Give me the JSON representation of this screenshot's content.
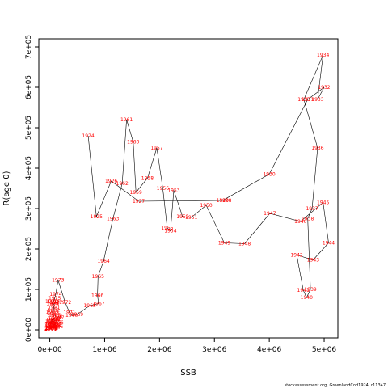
{
  "chart_data": {
    "type": "line",
    "xlabel": "SSB",
    "ylabel": "R(age 0)",
    "xlim": [
      -200000,
      5250000
    ],
    "ylim": [
      -20000,
      720000
    ],
    "x_ticks": [
      0,
      1000000,
      2000000,
      3000000,
      4000000,
      5000000
    ],
    "x_tick_labels": [
      "0e+00",
      "1e+06",
      "2e+06",
      "3e+06",
      "4e+06",
      "5e+06"
    ],
    "y_ticks": [
      0,
      100000,
      200000,
      300000,
      400000,
      500000,
      600000,
      700000
    ],
    "y_tick_labels": [
      "0e+00",
      "1e+05",
      "2e+05",
      "3e+05",
      "4e+05",
      "5e+05",
      "6e+05",
      "7e+05"
    ],
    "grid": false,
    "legend": "none",
    "label_color": "#ff0000",
    "line_color": "#000000",
    "credit": "stockassessment.org, GreenlandCod1924, r11347",
    "points": [
      {
        "year": "1924",
        "x": 700000,
        "y": 480000
      },
      {
        "year": "1925",
        "x": 850000,
        "y": 280000
      },
      {
        "year": "1926",
        "x": 1120000,
        "y": 368000
      },
      {
        "year": "1927",
        "x": 1620000,
        "y": 318000
      },
      {
        "year": "1928",
        "x": 3200000,
        "y": 320000
      },
      {
        "year": "1929",
        "x": 3150000,
        "y": 320000
      },
      {
        "year": "1930",
        "x": 4000000,
        "y": 385000
      },
      {
        "year": "1931",
        "x": 4700000,
        "y": 570000
      },
      {
        "year": "1932",
        "x": 5000000,
        "y": 600000
      },
      {
        "year": "1933",
        "x": 4880000,
        "y": 570000
      },
      {
        "year": "1934",
        "x": 4980000,
        "y": 680000
      },
      {
        "year": "1935",
        "x": 4630000,
        "y": 570000
      },
      {
        "year": "1936",
        "x": 4880000,
        "y": 450000
      },
      {
        "year": "1937",
        "x": 4780000,
        "y": 300000
      },
      {
        "year": "1938",
        "x": 4700000,
        "y": 275000
      },
      {
        "year": "1939",
        "x": 4750000,
        "y": 100000
      },
      {
        "year": "1940",
        "x": 4680000,
        "y": 80000
      },
      {
        "year": "1941",
        "x": 4620000,
        "y": 98000
      },
      {
        "year": "1942",
        "x": 4500000,
        "y": 185000
      },
      {
        "year": "1943",
        "x": 4800000,
        "y": 173000
      },
      {
        "year": "1944",
        "x": 5080000,
        "y": 215000
      },
      {
        "year": "1945",
        "x": 4980000,
        "y": 315000
      },
      {
        "year": "1946",
        "x": 4570000,
        "y": 268000
      },
      {
        "year": "1947",
        "x": 4010000,
        "y": 288000
      },
      {
        "year": "1948",
        "x": 3550000,
        "y": 213000
      },
      {
        "year": "1949",
        "x": 3180000,
        "y": 215000
      },
      {
        "year": "1950",
        "x": 2850000,
        "y": 308000
      },
      {
        "year": "1951",
        "x": 2580000,
        "y": 278000
      },
      {
        "year": "1952",
        "x": 2420000,
        "y": 280000
      },
      {
        "year": "1953",
        "x": 2260000,
        "y": 345000
      },
      {
        "year": "1954",
        "x": 2200000,
        "y": 245000
      },
      {
        "year": "1955",
        "x": 2140000,
        "y": 252000
      },
      {
        "year": "1956",
        "x": 2060000,
        "y": 350000
      },
      {
        "year": "1957",
        "x": 1950000,
        "y": 450000
      },
      {
        "year": "1958",
        "x": 1780000,
        "y": 375000
      },
      {
        "year": "1959",
        "x": 1570000,
        "y": 340000
      },
      {
        "year": "1960",
        "x": 1520000,
        "y": 465000
      },
      {
        "year": "1961",
        "x": 1400000,
        "y": 520000
      },
      {
        "year": "1962",
        "x": 1320000,
        "y": 362000
      },
      {
        "year": "1963",
        "x": 1150000,
        "y": 275000
      },
      {
        "year": "1964",
        "x": 980000,
        "y": 170000
      },
      {
        "year": "1965",
        "x": 880000,
        "y": 132000
      },
      {
        "year": "1966",
        "x": 870000,
        "y": 85000
      },
      {
        "year": "1967",
        "x": 890000,
        "y": 65000
      },
      {
        "year": "1968",
        "x": 730000,
        "y": 60000
      },
      {
        "year": "1969",
        "x": 500000,
        "y": 38000
      },
      {
        "year": "1970",
        "x": 400000,
        "y": 36000
      },
      {
        "year": "1971",
        "x": 360000,
        "y": 43000
      },
      {
        "year": "1972",
        "x": 280000,
        "y": 68000
      },
      {
        "year": "1973",
        "x": 150000,
        "y": 123000
      },
      {
        "year": "1974",
        "x": 110000,
        "y": 88000
      },
      {
        "year": "1975",
        "x": 90000,
        "y": 78000
      },
      {
        "year": "1976",
        "x": 70000,
        "y": 70000
      },
      {
        "year": "1977",
        "x": 120000,
        "y": 68000
      },
      {
        "year": "1978",
        "x": 60000,
        "y": 62000
      },
      {
        "year": "1979",
        "x": 30000,
        "y": 70000
      },
      {
        "year": "1980",
        "x": 50000,
        "y": 65000
      },
      {
        "year": "1981",
        "x": 80000,
        "y": 55000
      },
      {
        "year": "1982",
        "x": 70000,
        "y": 48000
      },
      {
        "year": "1983",
        "x": 40000,
        "y": 44000
      },
      {
        "year": "1984",
        "x": 60000,
        "y": 40000
      },
      {
        "year": "1985",
        "x": 90000,
        "y": 36000
      },
      {
        "year": "1986",
        "x": 120000,
        "y": 32000
      },
      {
        "year": "1987",
        "x": 150000,
        "y": 30000
      },
      {
        "year": "1988",
        "x": 80000,
        "y": 28000
      },
      {
        "year": "1989",
        "x": 40000,
        "y": 25000
      },
      {
        "year": "1990",
        "x": 30000,
        "y": 20000
      },
      {
        "year": "1991",
        "x": 20000,
        "y": 15000
      },
      {
        "year": "1992",
        "x": 15000,
        "y": 12000
      },
      {
        "year": "1993",
        "x": 25000,
        "y": 8000
      },
      {
        "year": "1994",
        "x": 60000,
        "y": 10000
      },
      {
        "year": "1995",
        "x": 100000,
        "y": 12000
      },
      {
        "year": "1996",
        "x": 130000,
        "y": 8000
      },
      {
        "year": "1997",
        "x": 90000,
        "y": 6000
      },
      {
        "year": "1998",
        "x": 50000,
        "y": 5000
      },
      {
        "year": "1999",
        "x": 30000,
        "y": 4000
      },
      {
        "year": "2000",
        "x": 20000,
        "y": 3000
      },
      {
        "year": "2001",
        "x": 15000,
        "y": 2000
      },
      {
        "year": "2002",
        "x": 25000,
        "y": 15000
      },
      {
        "year": "2003",
        "x": 40000,
        "y": 20000
      },
      {
        "year": "2004",
        "x": 70000,
        "y": 25000
      },
      {
        "year": "2005",
        "x": 110000,
        "y": 22000
      },
      {
        "year": "2006",
        "x": 140000,
        "y": 18000
      },
      {
        "year": "2007",
        "x": 100000,
        "y": 15000
      },
      {
        "year": "2008",
        "x": 60000,
        "y": 12000
      },
      {
        "year": "2009",
        "x": 40000,
        "y": 8000
      },
      {
        "year": "2010",
        "x": 30000,
        "y": 5000
      },
      {
        "year": "2011",
        "x": 20000,
        "y": 4000
      }
    ]
  }
}
